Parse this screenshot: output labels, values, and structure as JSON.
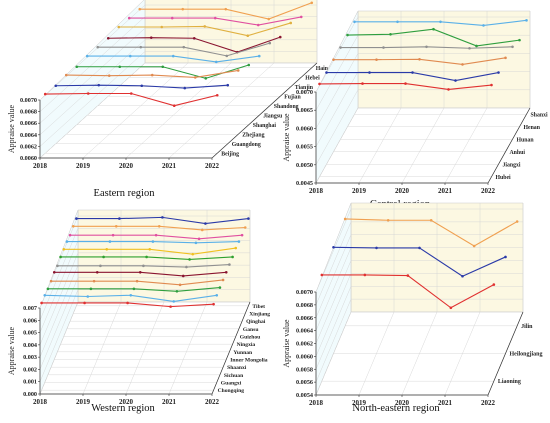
{
  "chart_data": [
    {
      "type": "line",
      "title": "Eastern region",
      "ylabel": "Appraise value",
      "x": [
        "2018",
        "2019",
        "2020",
        "2021",
        "2022"
      ],
      "y_ticks": [
        "0.0060",
        "0.0062",
        "0.0064",
        "0.0066",
        "0.0068",
        "0.0070"
      ],
      "depth_labels": [
        "Beijing",
        "Guangdong",
        "Zhejiang",
        "Shanghai",
        "Jiangsu",
        "Shandong",
        "Fujian",
        "Tianjin",
        "Hebei",
        "Hainan"
      ],
      "series": [
        {
          "name": "Beijing",
          "color": "#e03030",
          "values": [
            0.00702,
            0.00703,
            0.00703,
            0.00682,
            0.007
          ]
        },
        {
          "name": "Guangdong",
          "color": "#2a3aa8",
          "values": [
            0.007,
            0.00701,
            0.007,
            0.00696,
            0.00701
          ]
        },
        {
          "name": "Zhejiang",
          "color": "#e08a50",
          "values": [
            0.00702,
            0.00701,
            0.00702,
            0.00698,
            0.0071
          ]
        },
        {
          "name": "Shanghai",
          "color": "#2e9e3e",
          "values": [
            0.007,
            0.007,
            0.007,
            0.0068,
            0.00703
          ]
        },
        {
          "name": "Jiangsu",
          "color": "#5ab0e8",
          "values": [
            0.00702,
            0.00702,
            0.00702,
            0.00692,
            0.00702
          ]
        },
        {
          "name": "Shandong",
          "color": "#909090",
          "values": [
            0.00701,
            0.00701,
            0.00701,
            0.00686,
            0.00708
          ]
        },
        {
          "name": "Fujian",
          "color": "#8a1530",
          "values": [
            0.007,
            0.00701,
            0.007,
            0.00676,
            0.00702
          ]
        },
        {
          "name": "Tianjin",
          "color": "#e0b040",
          "values": [
            0.00703,
            0.00703,
            0.00704,
            0.00688,
            0.0071
          ]
        },
        {
          "name": "Hebei",
          "color": "#e050a0",
          "values": [
            0.00702,
            0.00702,
            0.00702,
            0.0069,
            0.00704
          ]
        },
        {
          "name": "Hainan",
          "color": "#f0a050",
          "values": [
            0.00701,
            0.00701,
            0.00701,
            0.00684,
            0.00712
          ]
        }
      ]
    },
    {
      "type": "line",
      "title": "Central region",
      "ylabel": "Appraise value",
      "x": [
        "2018",
        "2019",
        "2020",
        "2021",
        "2022"
      ],
      "y_ticks": [
        "0.0045",
        "0.0050",
        "0.0055",
        "0.0060",
        "0.0065",
        "0.0070"
      ],
      "depth_labels": [
        "Hubei",
        "Jiangxi",
        "Anhui",
        "Hunan",
        "Henan",
        "Shanxi"
      ],
      "series": [
        {
          "name": "Hubei",
          "color": "#e03030",
          "values": [
            0.00705,
            0.00706,
            0.00706,
            0.0069,
            0.00702
          ]
        },
        {
          "name": "Jiangxi",
          "color": "#2a3aa8",
          "values": [
            0.00702,
            0.00702,
            0.00702,
            0.0068,
            0.00702
          ]
        },
        {
          "name": "Anhui",
          "color": "#e08a50",
          "values": [
            0.00703,
            0.00703,
            0.00704,
            0.0069,
            0.00708
          ]
        },
        {
          "name": "Hunan",
          "color": "#909090",
          "values": [
            0.00702,
            0.00702,
            0.00704,
            0.007,
            0.00704
          ]
        },
        {
          "name": "Henan",
          "color": "#2e9e3e",
          "values": [
            0.00702,
            0.00704,
            0.00718,
            0.00672,
            0.00688
          ]
        },
        {
          "name": "Shanxi",
          "color": "#5ab0e8",
          "values": [
            0.00704,
            0.00704,
            0.00704,
            0.00694,
            0.00708
          ]
        }
      ]
    },
    {
      "type": "line",
      "title": "Western region",
      "ylabel": "Appraise value",
      "x": [
        "2018",
        "2019",
        "2020",
        "2021",
        "2022"
      ],
      "y_ticks": [
        "0.000",
        "0.001",
        "0.002",
        "0.003",
        "0.004",
        "0.005",
        "0.006",
        "0.007"
      ],
      "depth_labels": [
        "Chongqing",
        "Guangxi",
        "Sichuan",
        "Shaanxi",
        "Inner Mongolia",
        "Yunnan",
        "Ningxia",
        "Guizhou",
        "Gansu",
        "Qinghai",
        "Xinjiang",
        "Tibet"
      ],
      "series": [
        {
          "name": "Chongqing",
          "color": "#e03030",
          "values": [
            0.0071,
            0.0071,
            0.0071,
            0.0068,
            0.007
          ]
        },
        {
          "name": "Guangxi",
          "color": "#5ab0e8",
          "values": [
            0.0071,
            0.007,
            0.0071,
            0.0066,
            0.0071
          ]
        },
        {
          "name": "Sichuan",
          "color": "#2e9e3e",
          "values": [
            0.007,
            0.007,
            0.007,
            0.0068,
            0.0071
          ]
        },
        {
          "name": "Shaanxi",
          "color": "#e08a50",
          "values": [
            0.007,
            0.007,
            0.007,
            0.0067,
            0.0071
          ]
        },
        {
          "name": "Inner Mongolia",
          "color": "#8a1530",
          "values": [
            0.0071,
            0.0071,
            0.0071,
            0.0068,
            0.0071
          ]
        },
        {
          "name": "Yunnan",
          "color": "#909090",
          "values": [
            0.007,
            0.007,
            0.007,
            0.0069,
            0.0071
          ]
        },
        {
          "name": "Ningxia",
          "color": "#2ea02e",
          "values": [
            0.0071,
            0.0071,
            0.0071,
            0.0069,
            0.0071
          ]
        },
        {
          "name": "Guizhou",
          "color": "#f0c020",
          "values": [
            0.0071,
            0.0071,
            0.0071,
            0.0067,
            0.0072
          ]
        },
        {
          "name": "Gansu",
          "color": "#5ab0e8",
          "values": [
            0.0071,
            0.0071,
            0.0071,
            0.007,
            0.0071
          ]
        },
        {
          "name": "Qinghai",
          "color": "#e050a0",
          "values": [
            0.007,
            0.007,
            0.007,
            0.0067,
            0.007
          ]
        },
        {
          "name": "Xinjiang",
          "color": "#f0a050",
          "values": [
            0.0071,
            0.0071,
            0.0071,
            0.0068,
            0.007
          ]
        },
        {
          "name": "Tibet",
          "color": "#2a3aa8",
          "values": [
            0.0071,
            0.0071,
            0.0072,
            0.0067,
            0.0071
          ]
        }
      ]
    },
    {
      "type": "line",
      "title": "North-eastern region",
      "ylabel": "Appraise value",
      "x": [
        "2018",
        "2019",
        "2020",
        "2021",
        "2022"
      ],
      "y_ticks": [
        "0.0054",
        "0.0056",
        "0.0058",
        "0.0060",
        "0.0062",
        "0.0064",
        "0.0066",
        "0.0068",
        "0.0070"
      ],
      "depth_labels": [
        "Liaoning",
        "Heilongjiang",
        "Jilin"
      ],
      "series": [
        {
          "name": "Liaoning",
          "color": "#e03030",
          "values": [
            0.00705,
            0.00705,
            0.00704,
            0.00654,
            0.0069
          ]
        },
        {
          "name": "Heilongjiang",
          "color": "#2a3aa8",
          "values": [
            0.00705,
            0.00704,
            0.00704,
            0.0066,
            0.0069
          ]
        },
        {
          "name": "Jilin",
          "color": "#f0a050",
          "values": [
            0.00706,
            0.00704,
            0.00704,
            0.00664,
            0.00702
          ]
        }
      ]
    }
  ]
}
